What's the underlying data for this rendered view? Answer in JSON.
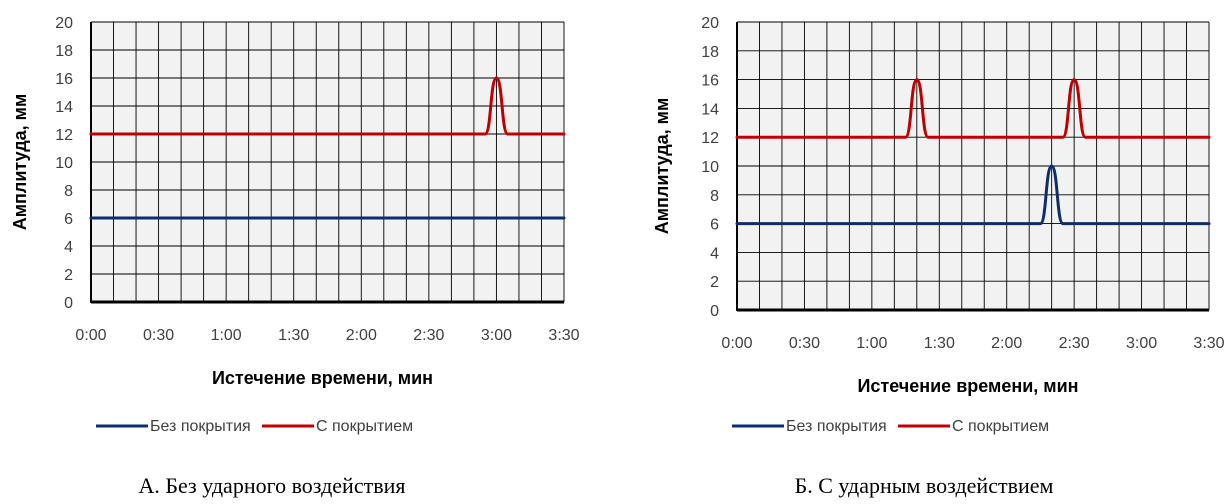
{
  "chart_data": [
    {
      "type": "line",
      "caption": "А. Без ударного воздействия",
      "xlabel": "Истечение времени, мин",
      "ylabel": "Амплитуда, мм",
      "x_tick_labels": [
        "0:00",
        "0:30",
        "1:00",
        "1:30",
        "2:00",
        "2:30",
        "3:00",
        "3:30"
      ],
      "x_range_seconds": [
        0,
        210
      ],
      "y_ticks": [
        0,
        2,
        4,
        6,
        8,
        10,
        12,
        14,
        16,
        18,
        20
      ],
      "ylim": [
        0,
        20
      ],
      "grid": true,
      "legend_position": "bottom",
      "series": [
        {
          "name": "Без покрытия",
          "color": "#0d2e6b",
          "baseline": 6,
          "x": [
            "0:00",
            "3:30"
          ],
          "y": [
            6,
            6
          ],
          "peaks": []
        },
        {
          "name": "С покрытием",
          "color": "#c00000",
          "baseline": 12,
          "x": [
            "0:00",
            "2:55",
            "3:00",
            "3:05",
            "3:30"
          ],
          "y": [
            12,
            12,
            16,
            12,
            12
          ],
          "peaks": [
            {
              "time": "3:00",
              "value": 16
            }
          ]
        }
      ]
    },
    {
      "type": "line",
      "caption": "Б. С ударным воздействием",
      "xlabel": "Истечение времени, мин",
      "ylabel": "Амплитуда, мм",
      "x_tick_labels": [
        "0:00",
        "0:30",
        "1:00",
        "1:30",
        "2:00",
        "2:30",
        "3:00",
        "3:30"
      ],
      "x_range_seconds": [
        0,
        210
      ],
      "y_ticks": [
        0,
        2,
        4,
        6,
        8,
        10,
        12,
        14,
        16,
        18,
        20
      ],
      "ylim": [
        0,
        20
      ],
      "grid": true,
      "legend_position": "bottom",
      "series": [
        {
          "name": "Без покрытия",
          "color": "#0d2e6b",
          "baseline": 6,
          "x": [
            "0:00",
            "2:15",
            "2:20",
            "2:25",
            "3:30"
          ],
          "y": [
            6,
            6,
            10,
            6,
            6
          ],
          "peaks": [
            {
              "time": "2:20",
              "value": 10
            }
          ]
        },
        {
          "name": "С покрытием",
          "color": "#c00000",
          "baseline": 12,
          "x": [
            "0:00",
            "1:15",
            "1:20",
            "1:25",
            "2:25",
            "2:30",
            "2:35",
            "3:30"
          ],
          "y": [
            12,
            12,
            16,
            12,
            12,
            16,
            12,
            12
          ],
          "peaks": [
            {
              "time": "1:20",
              "value": 16
            },
            {
              "time": "2:30",
              "value": 16
            }
          ]
        }
      ]
    }
  ]
}
